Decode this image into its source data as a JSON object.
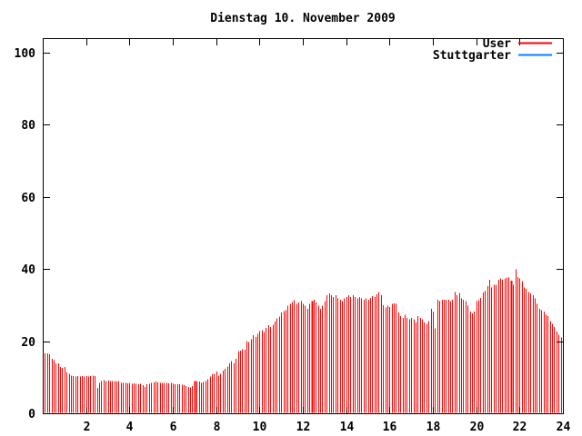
{
  "window": {
    "kind": "plot-image"
  },
  "chart_data": {
    "type": "bar",
    "title": "Dienstag 10. November 2009",
    "xlabel": "",
    "ylabel": "",
    "xlim": [
      0,
      24
    ],
    "ylim": [
      0,
      104
    ],
    "x_ticks": [
      2,
      4,
      6,
      8,
      10,
      12,
      14,
      16,
      18,
      20,
      22,
      24
    ],
    "y_ticks": [
      0,
      20,
      40,
      60,
      80,
      100
    ],
    "grid": false,
    "bar_style": "impulses",
    "x_start": 0.1,
    "x_step": 0.1,
    "x_end": 24.0,
    "double_width_hours": [
      7.0,
      12.4,
      21.6
    ],
    "legend": {
      "position": "top-right",
      "entries": [
        {
          "label": "User",
          "color": "#ff0000"
        },
        {
          "label": "Stuttgarter",
          "color": "#0080ff"
        }
      ]
    },
    "series": [
      {
        "name": "User",
        "color": "#ff0000",
        "values": [
          16.6,
          16.6,
          16.4,
          15.1,
          14.7,
          13.9,
          13.9,
          12.9,
          12.6,
          12.9,
          11.3,
          10.9,
          10.5,
          10.3,
          10.2,
          10.3,
          10.2,
          10.3,
          10.2,
          10.3,
          10.2,
          10.3,
          10.4,
          10.3,
          7.0,
          8.4,
          9.0,
          9.2,
          9.0,
          9.1,
          9.0,
          8.9,
          9.0,
          8.8,
          8.9,
          8.4,
          8.5,
          8.4,
          8.3,
          8.4,
          8.2,
          8.3,
          8.2,
          8.1,
          8.2,
          7.8,
          7.3,
          8.0,
          8.2,
          8.4,
          8.6,
          8.8,
          8.6,
          8.5,
          8.4,
          8.5,
          8.4,
          8.3,
          8.4,
          8.2,
          8.0,
          8.1,
          8.0,
          7.9,
          7.8,
          7.5,
          7.3,
          7.2,
          7.6,
          8.9,
          9.0,
          8.8,
          8.5,
          8.7,
          9.0,
          9.5,
          10.2,
          10.8,
          11.0,
          11.6,
          10.4,
          11.0,
          11.8,
          12.3,
          13.0,
          13.9,
          14.5,
          13.9,
          15.1,
          17.2,
          17.4,
          17.8,
          17.6,
          20.0,
          19.8,
          20.5,
          21.7,
          21.2,
          22.0,
          22.8,
          23.1,
          22.5,
          23.7,
          24.4,
          23.9,
          24.6,
          25.5,
          26.3,
          26.8,
          28.0,
          28.3,
          28.6,
          29.8,
          30.3,
          30.8,
          31.3,
          30.3,
          30.7,
          31.1,
          30.3,
          29.8,
          29.0,
          30.3,
          31.1,
          31.5,
          30.7,
          29.8,
          29.0,
          29.8,
          31.1,
          32.8,
          33.2,
          32.8,
          32.3,
          32.8,
          31.9,
          31.5,
          31.1,
          31.9,
          32.3,
          32.8,
          32.3,
          32.8,
          32.3,
          31.9,
          32.3,
          31.9,
          31.5,
          31.9,
          31.5,
          32.0,
          32.5,
          32.3,
          33.0,
          33.6,
          32.8,
          30.0,
          29.3,
          29.8,
          29.5,
          30.3,
          30.5,
          30.3,
          28.0,
          26.9,
          26.5,
          27.3,
          26.5,
          26.1,
          26.5,
          26.1,
          25.2,
          26.9,
          26.5,
          26.1,
          25.2,
          24.8,
          25.6,
          29.0,
          28.2,
          23.5,
          31.5,
          31.1,
          31.5,
          31.5,
          31.5,
          31.5,
          31.1,
          31.5,
          33.6,
          32.8,
          33.4,
          31.9,
          31.5,
          31.1,
          29.8,
          28.2,
          27.7,
          28.2,
          31.1,
          31.4,
          32.0,
          33.5,
          34.0,
          35.3,
          37.0,
          34.9,
          35.7,
          35.7,
          37.0,
          37.4,
          37.0,
          37.4,
          37.6,
          37.6,
          36.8,
          35.7,
          39.9,
          37.8,
          37.4,
          36.6,
          34.9,
          34.5,
          33.6,
          33.2,
          32.8,
          31.9,
          30.3,
          29.0,
          28.6,
          28.2,
          27.3,
          26.9,
          25.6,
          24.8,
          23.9,
          22.7,
          21.8,
          21.0,
          20.4
        ]
      },
      {
        "name": "Stuttgarter",
        "color": "#0080ff",
        "values": []
      }
    ]
  }
}
